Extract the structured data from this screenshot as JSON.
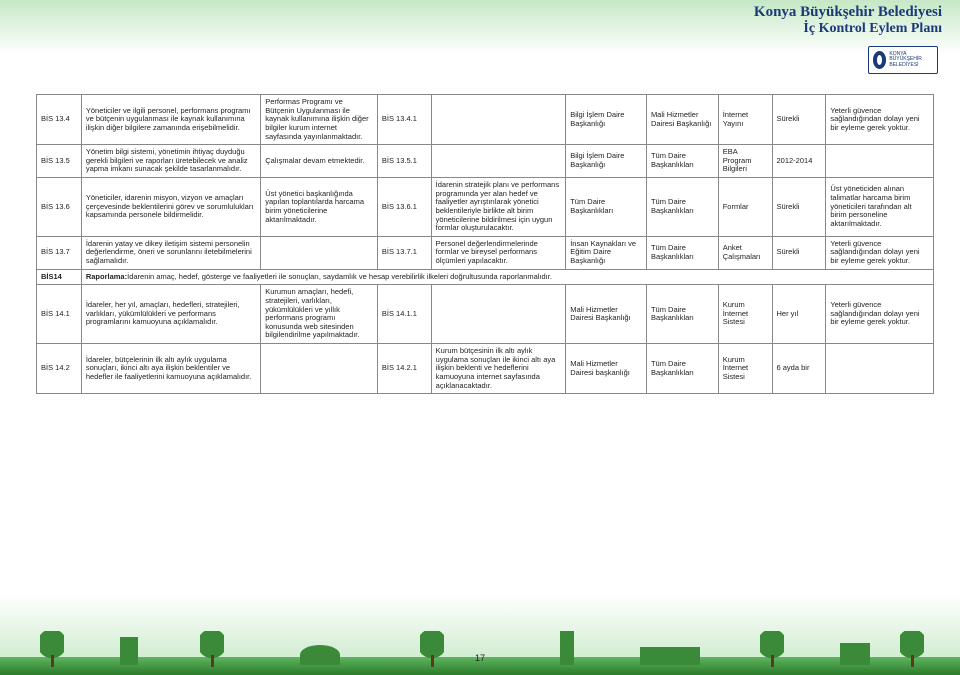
{
  "header": {
    "title1": "Konya Büyükşehir Belediyesi",
    "title2": "İç Kontrol Eylem Planı",
    "logo_text": "KONYA BÜYÜKŞEHİR BELEDİYESİ"
  },
  "page_number": "17",
  "rows": [
    {
      "code": "BİS 13.4",
      "c1": "Yöneticiler ve ilgili personel, performans programı ve bütçenin uygulanması ile kaynak kullanımına ilişkin diğer bilgilere zamanında erişebilmelidir.",
      "c2": "Performas Programı ve Bütçenin Uygulanması ile kaynak kullanımına ilişkin diğer bilgiler kurum internet sayfasında yayınlanmaktadır.",
      "c3": "BİS 13.4.1",
      "c4": "",
      "c5": "Bilgi İşlem Daire Başkanlığı",
      "c6": "Mali Hizmetler Dairesi Başkanlığı",
      "c7": "İnternet Yayını",
      "c8": "Sürekli",
      "c9": "Yeterli güvence sağlandığından dolayı yeni bir eyleme gerek yoktur."
    },
    {
      "code": "BİS 13.5",
      "c1": "Yönetim bilgi sistemi, yönetimin ihtiyaç duyduğu gerekli bilgileri ve raporları üretebilecek ve analiz yapma imkanı sunacak şekilde tasarlanmalıdır.",
      "c2": "Çalışmalar devam etmektedir.",
      "c3": "BİS 13.5.1",
      "c4": "",
      "c5": "Bilgi İşlem Daire Başkanlığı",
      "c6": "Tüm Daire Başkanlıkları",
      "c7": "EBA Program Bilgileri",
      "c8": "2012-2014",
      "c9": ""
    },
    {
      "code": "BİS 13.6",
      "c1": "Yöneticiler, idarenin misyon, vizyon ve amaçları çerçevesinde beklentilerini görev ve sorumlulukları kapsamında personele bildirmelidir.",
      "c2": "Üst yönetici başkanlığında yapılan toplantılarda harcama birim yöneticilerine aktarılmaktadır.",
      "c3": "BİS 13.6.1",
      "c4": "İdarenin stratejik planı ve performans programında yer alan hedef ve faaliyetler ayrıştırılarak yönetici beklentileriyle birlikte alt birim yöneticilerine bildirilmesi için uygun formlar oluşturulacaktır.",
      "c5": "Tüm Daire Başkanlıkları",
      "c6": "Tüm Daire Başkanlıkları",
      "c7": "Formlar",
      "c8": "Sürekli",
      "c9": "Üst yöneticiden alınan talimatlar harcama birim yöneticileri tarafından alt birim personeline aktarılmaktadır."
    },
    {
      "code": "BİS 13.7",
      "c1": "İdarenin yatay ve dikey iletişim sistemi personelin değerlendirme, öneri ve sorunlarını iletebilmelerini sağlamalıdır.",
      "c2": "",
      "c3": "BİS 13.7.1",
      "c4": "Personel değerlendirmelerinde formlar ve bireysel performans ölçümleri yapılacaktır.",
      "c5": "İnsan Kaynakları ve Eğitim Daire Başkanlığı",
      "c6": "Tüm Daire Başkanlıkları",
      "c7": "Anket Çalışmaları",
      "c8": "Sürekli",
      "c9": "Yeterli güvence sağlandığından dolayı yeni bir eyleme gerek yoktur."
    }
  ],
  "span_row": {
    "code": "BİS14",
    "text": "Raporlama:İdarenin amaç, hedef, gösterge ve faaliyetleri ile sonuçları, saydamlık ve hesap verebilirlik ilkeleri doğrultusunda raporlanmalıdır."
  },
  "rows2": [
    {
      "code": "BİS 14.1",
      "c1": "İdareler, her yıl, amaçları, hedefleri, stratejileri, varlıkları, yükümlülükleri ve performans programlarını kamuoyuna açıklamalıdır.",
      "c2": "Kurumun amaçları, hedefi, stratejileri, varlıkları, yükümlülükleri ve yıllık performans programı konusunda web sitesinden bilgilendirilme yapılmaktadır.",
      "c3": "BİS 14.1.1",
      "c4": "",
      "c5": "Mali Hizmetler Dairesi Başkanlığı",
      "c6": "Tüm Daire Başkanlıkları",
      "c7": "Kurum İnternet Sistesi",
      "c8": "Her yıl",
      "c9": "Yeterli güvence sağlandığından dolayı yeni bir eyleme gerek yoktur."
    },
    {
      "code": "BİS 14.2",
      "c1": "İdareler, bütçelerinin ilk altı aylık uygulama sonuçları, ikinci altı aya ilişkin beklentiler ve hedefler ile faaliyetlerini kamuoyuna açıklamalıdır.",
      "c2": "",
      "c3": "BİS 14.2.1",
      "c4": "Kurum bütçesinin ilk altı aylık uygulama sonuçları ile ikinci altı aya ilişkin beklenti ve hedeflerini kamuoyuna internet sayfasında açıklanacaktadır.",
      "c5": "Mali Hizmetler Dairesi başkanlığı",
      "c6": "Tüm Daire Başkanlıkları",
      "c7": "Kurum İnternet Sistesi",
      "c8": "6 ayda bir",
      "c9": ""
    }
  ],
  "col_widths": [
    "5%",
    "20%",
    "13%",
    "6%",
    "15%",
    "9%",
    "8%",
    "6%",
    "6%",
    "12%"
  ]
}
